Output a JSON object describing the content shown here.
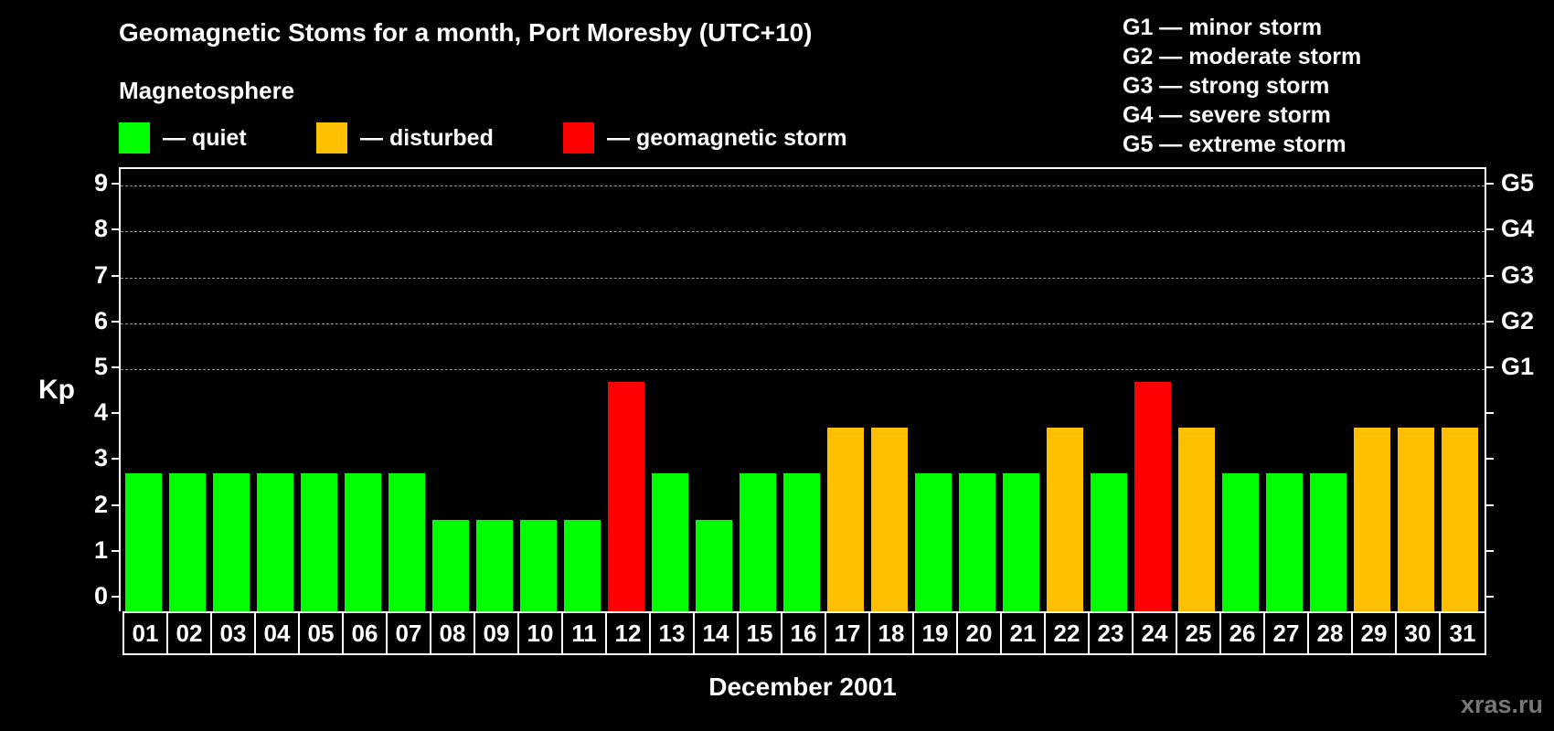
{
  "header": {
    "title": "Geomagnetic Stoms for a month, Port Moresby (UTC+10)",
    "subtitle": "Magnetosphere"
  },
  "legend": [
    {
      "label": "— quiet",
      "color": "#00ff00"
    },
    {
      "label": "— disturbed",
      "color": "#ffc000"
    },
    {
      "label": "— geomagnetic storm",
      "color": "#ff0000"
    }
  ],
  "g_legend": [
    "G1 — minor storm",
    "G2 — moderate storm",
    "G3 — strong storm",
    "G4 — severe storm",
    "G5 — extreme storm"
  ],
  "axes": {
    "ylabel": "Kp",
    "xlabel": "December 2001",
    "yticks": [
      "0",
      "1",
      "2",
      "3",
      "4",
      "5",
      "6",
      "7",
      "8",
      "9"
    ],
    "right_ticks": [
      {
        "value": 5,
        "label": "G1"
      },
      {
        "value": 6,
        "label": "G2"
      },
      {
        "value": 7,
        "label": "G3"
      },
      {
        "value": 8,
        "label": "G4"
      },
      {
        "value": 9,
        "label": "G5"
      }
    ]
  },
  "watermark": "xras.ru",
  "chart_data": {
    "type": "bar",
    "title": "Geomagnetic Stoms for a month, Port Moresby (UTC+10)",
    "xlabel": "December 2001",
    "ylabel": "Kp",
    "ylim": [
      0,
      9
    ],
    "grid": "dashed horizontal at 5-9",
    "categories": [
      "01",
      "02",
      "03",
      "04",
      "05",
      "06",
      "07",
      "08",
      "09",
      "10",
      "11",
      "12",
      "13",
      "14",
      "15",
      "16",
      "17",
      "18",
      "19",
      "20",
      "21",
      "22",
      "23",
      "24",
      "25",
      "26",
      "27",
      "28",
      "29",
      "30",
      "31"
    ],
    "values": [
      3,
      3,
      3,
      3,
      3,
      3,
      3,
      2,
      2,
      2,
      2,
      5,
      3,
      2,
      3,
      3,
      4,
      4,
      3,
      3,
      3,
      4,
      3,
      5,
      4,
      3,
      3,
      3,
      4,
      4,
      4
    ],
    "status": [
      "quiet",
      "quiet",
      "quiet",
      "quiet",
      "quiet",
      "quiet",
      "quiet",
      "quiet",
      "quiet",
      "quiet",
      "quiet",
      "storm",
      "quiet",
      "quiet",
      "quiet",
      "quiet",
      "disturbed",
      "disturbed",
      "quiet",
      "quiet",
      "quiet",
      "disturbed",
      "quiet",
      "storm",
      "disturbed",
      "quiet",
      "quiet",
      "quiet",
      "disturbed",
      "disturbed",
      "disturbed"
    ],
    "colors": {
      "quiet": "#00ff00",
      "disturbed": "#ffc000",
      "storm": "#ff0000"
    },
    "legend": [
      "quiet",
      "disturbed",
      "geomagnetic storm"
    ],
    "right_axis_labels": {
      "5": "G1",
      "6": "G2",
      "7": "G3",
      "8": "G4",
      "9": "G5"
    }
  }
}
